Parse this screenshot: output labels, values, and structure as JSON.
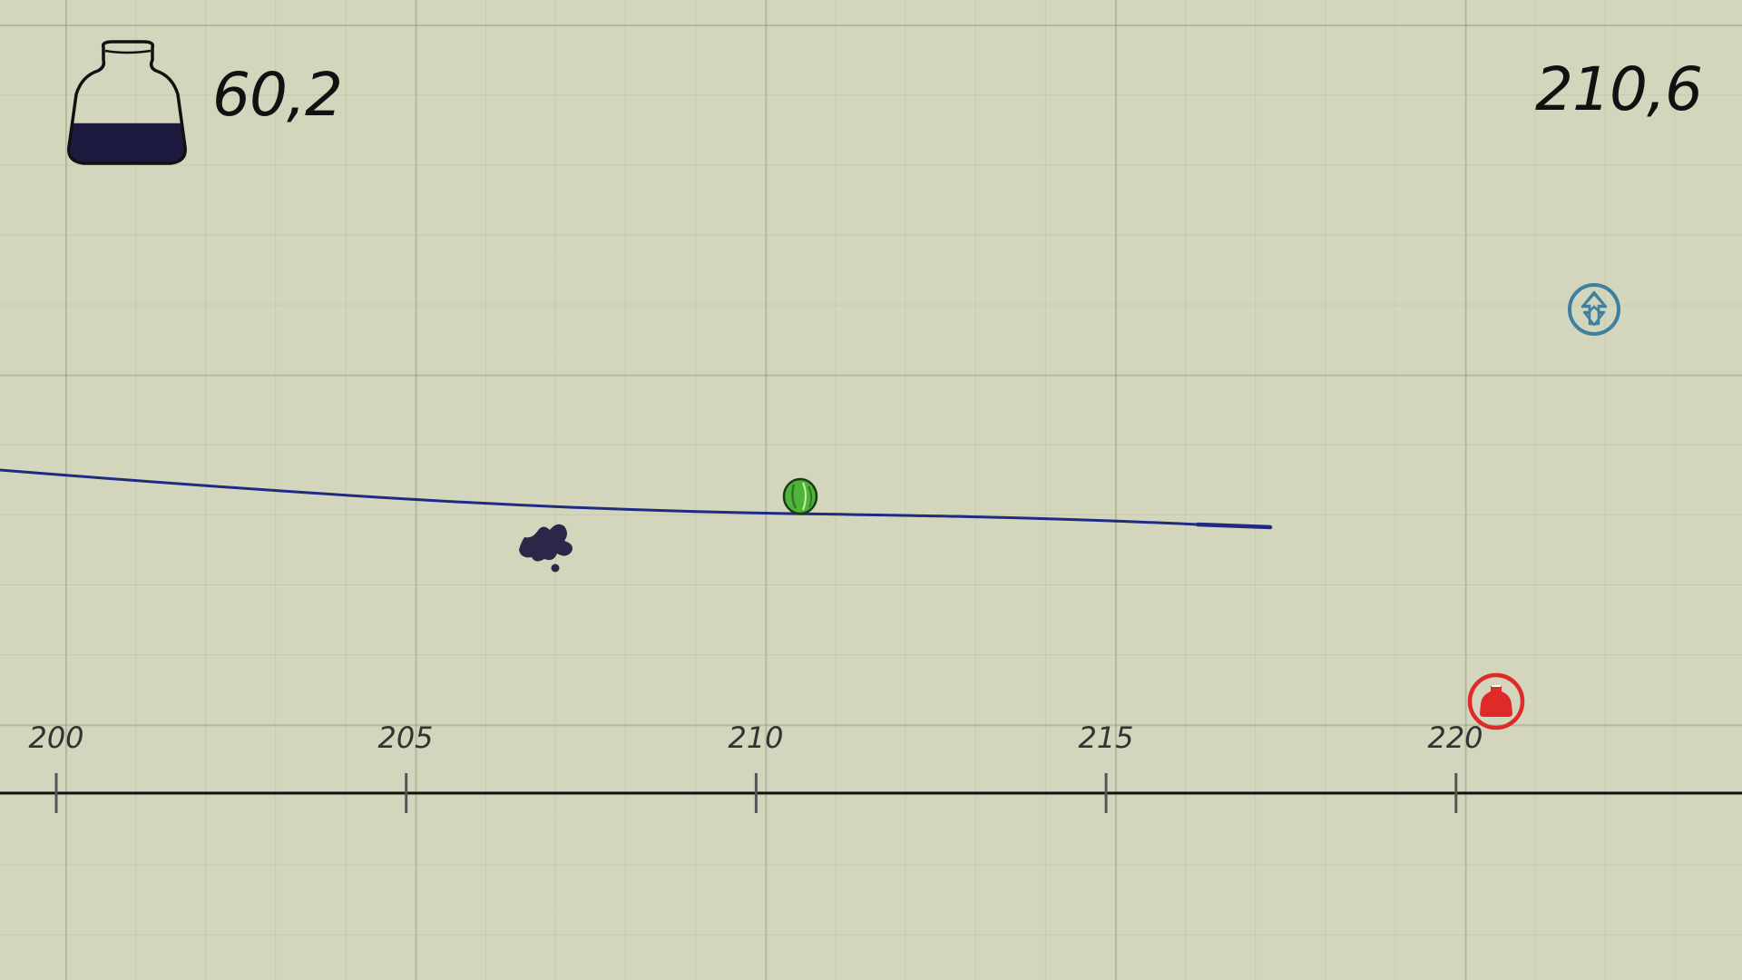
{
  "hud": {
    "ink_amount": "60,2",
    "ink_level_fraction": 0.35,
    "distance": "210,6"
  },
  "ruler": {
    "ticks": [
      {
        "value": 200,
        "label": "200"
      },
      {
        "value": 205,
        "label": "205"
      },
      {
        "value": 210,
        "label": "210"
      },
      {
        "value": 215,
        "label": "215"
      },
      {
        "value": 220,
        "label": "220"
      }
    ]
  },
  "entities": {
    "ball_icon": "green-ball-icon",
    "splat_icon": "ink-splat-icon",
    "boost_icon": "arrow-up-circle-icon",
    "refill_icon": "ink-bottle-circle-icon"
  },
  "colors": {
    "paper": "#d3d6bc",
    "ink": "#1c1a3e",
    "drawn_line": "#1f2a80",
    "ball": "#4fb33a",
    "boost": "#3f7fa0",
    "refill": "#e02a2a"
  }
}
